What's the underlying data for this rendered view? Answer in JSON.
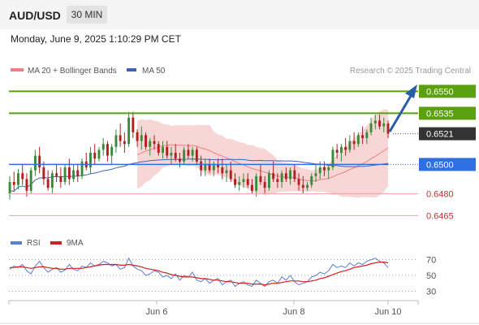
{
  "header": {
    "symbol": "AUD/USD",
    "timeframe": "30 MIN",
    "datetime": "Monday, June 9, 2025 1:10:29 PM CET"
  },
  "legend": {
    "ma20_label": "MA 20 + Bollinger Bands",
    "ma50_label": "MA 50",
    "credit": "Research © 2025 Trading Central",
    "rsi_label": "RSI",
    "ma9_label": "9MA"
  },
  "colors": {
    "up_candle": "#3a8a3a",
    "down_candle": "#b02020",
    "bollinger_fill": "#f9d6d6",
    "ma20": "#f08080",
    "ma50": "#3b63b5",
    "resistance": "#5aa010",
    "pivot": "#2f6fde",
    "support": "#f0a0a0",
    "current": "#333333",
    "arrow": "#2a5fa8",
    "rsi": "#5b7ed8",
    "ma9": "#d02020"
  },
  "chart_data": [
    {
      "type": "candlestick",
      "title": "AUD/USD 30 MIN",
      "ylim": [
        0.6458,
        0.6558
      ],
      "x_ticks": [
        "Jun 6",
        "Jun 8",
        "Jun 10"
      ],
      "levels": [
        {
          "value": 0.655,
          "label": "0.6550",
          "kind": "resistance"
        },
        {
          "value": 0.6535,
          "label": "0.6535",
          "kind": "resistance"
        },
        {
          "value": 0.6521,
          "label": "0.6521",
          "kind": "current"
        },
        {
          "value": 0.65,
          "label": "0.6500",
          "kind": "pivot"
        },
        {
          "value": 0.648,
          "label": "0.6480",
          "kind": "support"
        },
        {
          "value": 0.6465,
          "label": "0.6465",
          "kind": "support"
        }
      ],
      "candles": [
        [
          0.648,
          0.6492,
          0.6476,
          0.6488
        ],
        [
          0.6488,
          0.6495,
          0.6482,
          0.6486
        ],
        [
          0.6486,
          0.6497,
          0.6483,
          0.6494
        ],
        [
          0.6494,
          0.65,
          0.6486,
          0.649
        ],
        [
          0.649,
          0.6494,
          0.6478,
          0.6482
        ],
        [
          0.6482,
          0.6498,
          0.648,
          0.6496
        ],
        [
          0.6496,
          0.651,
          0.6492,
          0.6506
        ],
        [
          0.6506,
          0.6512,
          0.6494,
          0.6498
        ],
        [
          0.6498,
          0.6502,
          0.6486,
          0.649
        ],
        [
          0.649,
          0.6496,
          0.6482,
          0.6484
        ],
        [
          0.6484,
          0.6496,
          0.648,
          0.6494
        ],
        [
          0.6494,
          0.65,
          0.6488,
          0.6492
        ],
        [
          0.6492,
          0.6498,
          0.6484,
          0.6488
        ],
        [
          0.6488,
          0.65,
          0.6486,
          0.6498
        ],
        [
          0.6498,
          0.6504,
          0.6486,
          0.649
        ],
        [
          0.649,
          0.65,
          0.6488,
          0.6496
        ],
        [
          0.6496,
          0.65,
          0.6488,
          0.6492
        ],
        [
          0.6492,
          0.6504,
          0.649,
          0.6502
        ],
        [
          0.6502,
          0.6508,
          0.6496,
          0.6498
        ],
        [
          0.6498,
          0.6512,
          0.6494,
          0.6508
        ],
        [
          0.6508,
          0.6514,
          0.65,
          0.6504
        ],
        [
          0.6504,
          0.6512,
          0.6502,
          0.651
        ],
        [
          0.651,
          0.6518,
          0.6506,
          0.6514
        ],
        [
          0.6514,
          0.6516,
          0.6502,
          0.6506
        ],
        [
          0.6506,
          0.6514,
          0.65,
          0.6512
        ],
        [
          0.6512,
          0.6524,
          0.6508,
          0.652
        ],
        [
          0.652,
          0.6528,
          0.6512,
          0.6516
        ],
        [
          0.6516,
          0.6522,
          0.6508,
          0.6514
        ],
        [
          0.6514,
          0.6536,
          0.6512,
          0.6532
        ],
        [
          0.6532,
          0.6536,
          0.6518,
          0.6522
        ],
        [
          0.6522,
          0.6524,
          0.6512,
          0.6516
        ],
        [
          0.6516,
          0.6526,
          0.651,
          0.652
        ],
        [
          0.652,
          0.6522,
          0.651,
          0.6512
        ],
        [
          0.6512,
          0.6518,
          0.6506,
          0.6516
        ],
        [
          0.6516,
          0.652,
          0.651,
          0.6514
        ],
        [
          0.6514,
          0.6516,
          0.6506,
          0.6508
        ],
        [
          0.6508,
          0.6516,
          0.6504,
          0.6512
        ],
        [
          0.6512,
          0.6516,
          0.6504,
          0.6506
        ],
        [
          0.6506,
          0.6512,
          0.65,
          0.6508
        ],
        [
          0.6508,
          0.6514,
          0.6502,
          0.6504
        ],
        [
          0.6504,
          0.6508,
          0.6498,
          0.6502
        ],
        [
          0.6502,
          0.6512,
          0.65,
          0.651
        ],
        [
          0.651,
          0.6514,
          0.6504,
          0.6506
        ],
        [
          0.6506,
          0.6512,
          0.6502,
          0.651
        ],
        [
          0.651,
          0.6512,
          0.65,
          0.6502
        ],
        [
          0.6502,
          0.6506,
          0.6492,
          0.6496
        ],
        [
          0.6496,
          0.6504,
          0.6492,
          0.65
        ],
        [
          0.65,
          0.6504,
          0.6494,
          0.6496
        ],
        [
          0.6496,
          0.6502,
          0.6492,
          0.65
        ],
        [
          0.65,
          0.6504,
          0.6494,
          0.6498
        ],
        [
          0.6498,
          0.6504,
          0.649,
          0.6494
        ],
        [
          0.6494,
          0.65,
          0.6488,
          0.6496
        ],
        [
          0.6496,
          0.6502,
          0.6488,
          0.649
        ],
        [
          0.649,
          0.6494,
          0.6484,
          0.6486
        ],
        [
          0.6486,
          0.6492,
          0.6482,
          0.6488
        ],
        [
          0.6488,
          0.6494,
          0.6484,
          0.649
        ],
        [
          0.649,
          0.6494,
          0.6484,
          0.6486
        ],
        [
          0.6486,
          0.649,
          0.648,
          0.6482
        ],
        [
          0.6482,
          0.6494,
          0.6478,
          0.6492
        ],
        [
          0.6492,
          0.65,
          0.6486,
          0.6488
        ],
        [
          0.6488,
          0.6492,
          0.648,
          0.6484
        ],
        [
          0.6484,
          0.6496,
          0.6482,
          0.6494
        ],
        [
          0.6494,
          0.6502,
          0.6488,
          0.649
        ],
        [
          0.649,
          0.6494,
          0.6484,
          0.6488
        ],
        [
          0.6488,
          0.6496,
          0.6484,
          0.6494
        ],
        [
          0.6494,
          0.6498,
          0.6488,
          0.649
        ],
        [
          0.649,
          0.6498,
          0.6486,
          0.6496
        ],
        [
          0.6496,
          0.65,
          0.6488,
          0.649
        ],
        [
          0.649,
          0.6494,
          0.6482,
          0.6486
        ],
        [
          0.6486,
          0.6492,
          0.648,
          0.6484
        ],
        [
          0.6484,
          0.6488,
          0.6482,
          0.6486
        ],
        [
          0.6486,
          0.6494,
          0.6484,
          0.6492
        ],
        [
          0.6492,
          0.65,
          0.6488,
          0.6494
        ],
        [
          0.6494,
          0.6502,
          0.649,
          0.6498
        ],
        [
          0.6498,
          0.6502,
          0.6492,
          0.6496
        ],
        [
          0.6496,
          0.65,
          0.649,
          0.6498
        ],
        [
          0.6498,
          0.6512,
          0.6496,
          0.651
        ],
        [
          0.651,
          0.6514,
          0.6504,
          0.6508
        ],
        [
          0.6508,
          0.6514,
          0.6502,
          0.6512
        ],
        [
          0.6512,
          0.6518,
          0.6506,
          0.651
        ],
        [
          0.651,
          0.652,
          0.6508,
          0.6516
        ],
        [
          0.6516,
          0.6522,
          0.651,
          0.6514
        ],
        [
          0.6514,
          0.6522,
          0.6512,
          0.652
        ],
        [
          0.652,
          0.6526,
          0.6514,
          0.6518
        ],
        [
          0.6518,
          0.6524,
          0.6514,
          0.6522
        ],
        [
          0.6522,
          0.6532,
          0.652,
          0.6528
        ],
        [
          0.6528,
          0.6534,
          0.6524,
          0.653
        ],
        [
          0.653,
          0.6534,
          0.6524,
          0.6526
        ],
        [
          0.6526,
          0.6532,
          0.6522,
          0.6528
        ],
        [
          0.6528,
          0.653,
          0.6518,
          0.6521
        ]
      ]
    },
    {
      "type": "line",
      "title": "RSI",
      "ylim": [
        20,
        80
      ],
      "y_ticks": [
        30,
        50,
        70
      ],
      "series": [
        {
          "name": "RSI",
          "values": [
            58,
            62,
            60,
            64,
            56,
            52,
            62,
            68,
            60,
            54,
            58,
            60,
            54,
            57,
            64,
            58,
            56,
            62,
            60,
            66,
            62,
            64,
            68,
            66,
            62,
            64,
            58,
            60,
            72,
            62,
            58,
            56,
            50,
            52,
            56,
            54,
            48,
            50,
            46,
            52,
            44,
            50,
            48,
            54,
            44,
            42,
            46,
            40,
            44,
            46,
            38,
            42,
            44,
            36,
            40,
            42,
            38,
            36,
            44,
            40,
            36,
            42,
            44,
            40,
            48,
            44,
            50,
            42,
            38,
            40,
            42,
            48,
            50,
            54,
            52,
            56,
            64,
            60,
            62,
            60,
            66,
            62,
            66,
            64,
            68,
            70,
            72,
            68,
            66,
            60
          ]
        },
        {
          "name": "9MA",
          "values": [
            60,
            60,
            61,
            61,
            60,
            59,
            60,
            61,
            61,
            60,
            59,
            59,
            58,
            58,
            59,
            59,
            59,
            59,
            60,
            61,
            62,
            63,
            64,
            64,
            64,
            64,
            63,
            63,
            64,
            63,
            62,
            61,
            59,
            58,
            57,
            56,
            54,
            53,
            51,
            50,
            49,
            48,
            48,
            48,
            47,
            46,
            46,
            45,
            44,
            44,
            43,
            42,
            42,
            41,
            40,
            40,
            40,
            39,
            39,
            39,
            38,
            39,
            40,
            40,
            41,
            42,
            43,
            43,
            43,
            42,
            42,
            43,
            44,
            46,
            47,
            49,
            51,
            53,
            55,
            56,
            58,
            60,
            61,
            62,
            63,
            65,
            66,
            67,
            67,
            66
          ]
        }
      ]
    }
  ]
}
